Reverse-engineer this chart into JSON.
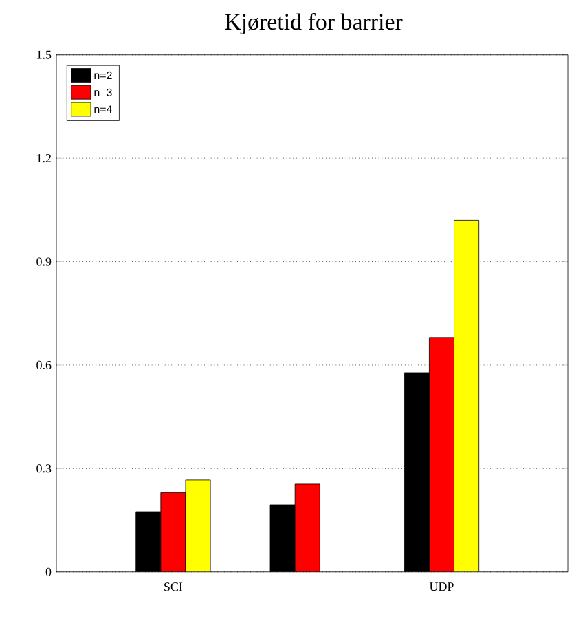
{
  "chart_data": {
    "type": "bar",
    "title": "Kjøretid for barrier",
    "categories": [
      "SCI",
      null,
      "UDP"
    ],
    "series": [
      {
        "name": "n=2",
        "color": "#000000",
        "values": [
          0.175,
          0.195,
          0.578
        ]
      },
      {
        "name": "n=3",
        "color": "#ff0000",
        "values": [
          0.23,
          0.255,
          0.68
        ]
      },
      {
        "name": "n=4",
        "color": "#ffff00",
        "values": [
          0.267,
          null,
          1.02
        ]
      }
    ],
    "ylim": [
      0,
      1.5
    ],
    "yticks": [
      0,
      0.3,
      0.6,
      0.9,
      1.2,
      1.5
    ],
    "grid": "y",
    "legend": "top left"
  }
}
